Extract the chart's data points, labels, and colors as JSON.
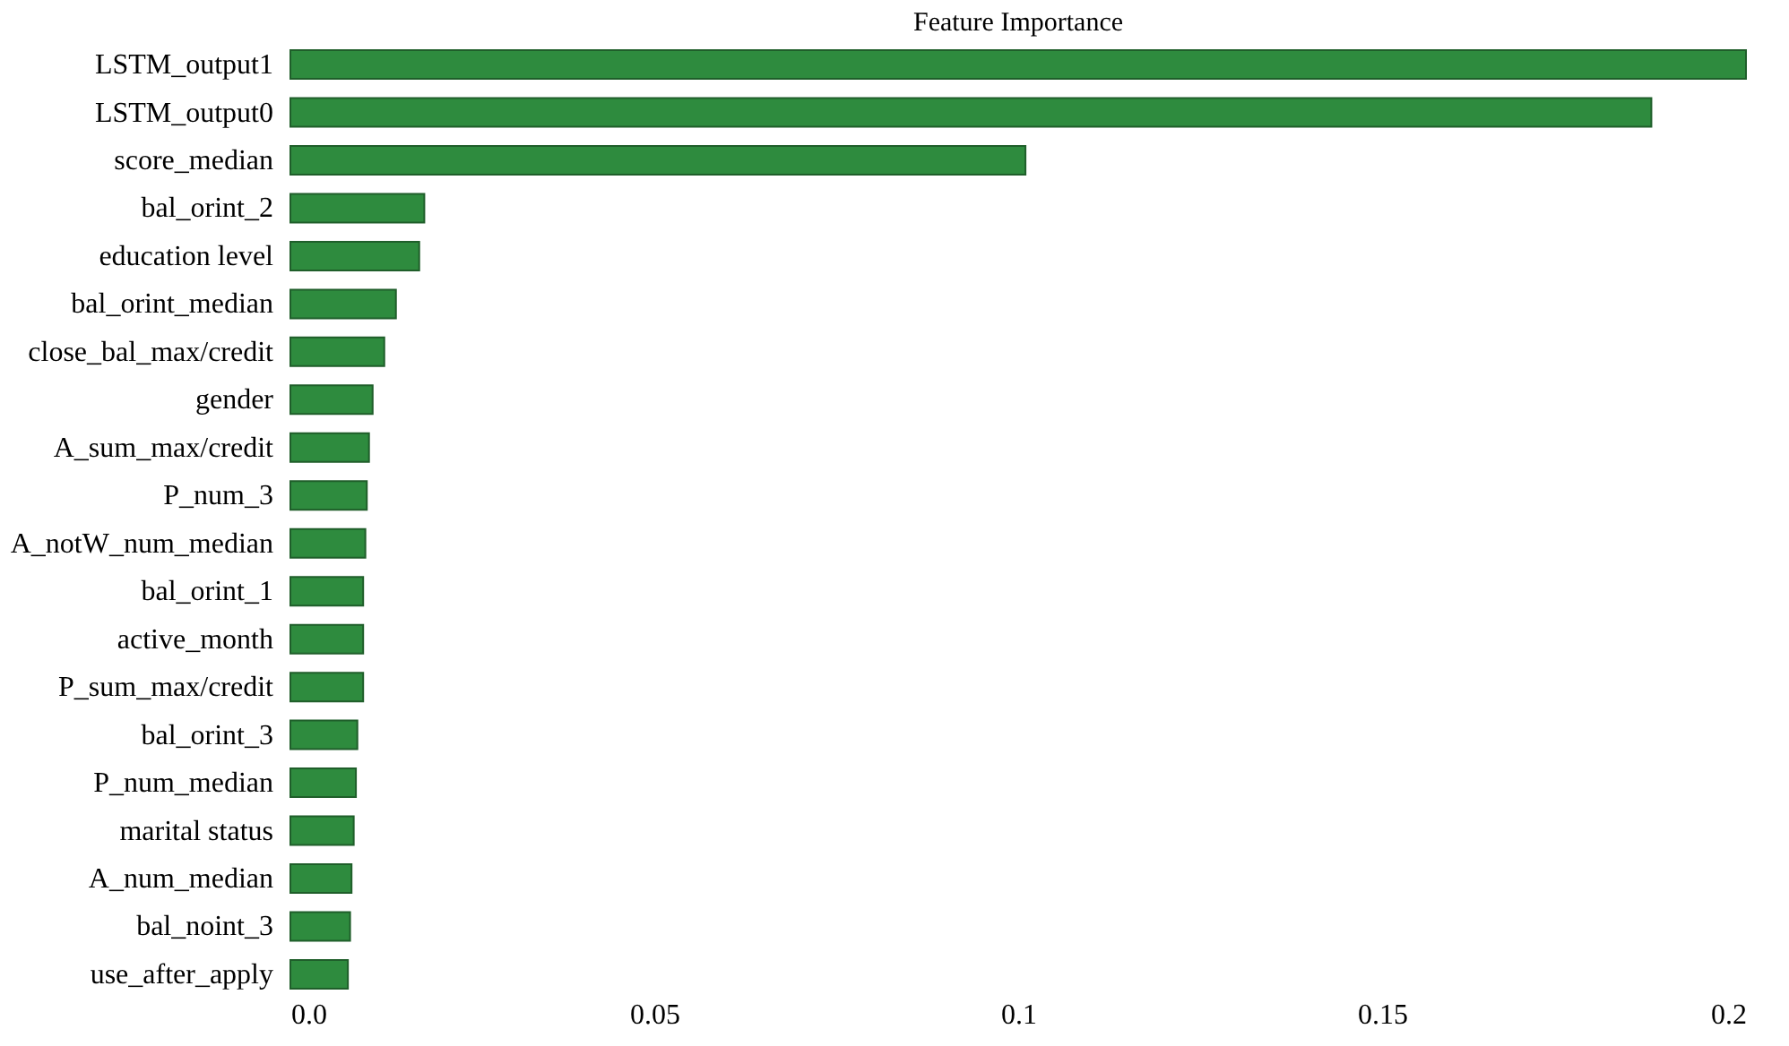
{
  "chart_data": {
    "type": "bar",
    "orientation": "horizontal",
    "title": "Feature Importance",
    "categories": [
      "LSTM_output1",
      "LSTM_output0",
      "score_median",
      "bal_orint_2",
      "education level",
      "bal_orint_median",
      "close_bal_max/credit",
      "gender",
      "A_sum_max/credit",
      "P_num_3",
      "A_notW_num_median",
      "bal_orint_1",
      "active_month",
      "P_sum_max/credit",
      "bal_orint_3",
      "P_num_median",
      "marital status",
      "A_num_median",
      "bal_noint_3",
      "use_after_apply"
    ],
    "values": [
      0.2,
      0.187,
      0.101,
      0.0184,
      0.0177,
      0.0145,
      0.0129,
      0.0113,
      0.0108,
      0.0105,
      0.0103,
      0.01,
      0.01,
      0.01,
      0.0092,
      0.009,
      0.0087,
      0.0084,
      0.0082,
      0.0079
    ],
    "color": "#2e8b3e",
    "xlim": [
      0,
      0.2
    ],
    "xticks": [
      {
        "value": 0,
        "label": "0.0"
      },
      0.05,
      0.1,
      0.15,
      0.2
    ],
    "grid": false
  }
}
